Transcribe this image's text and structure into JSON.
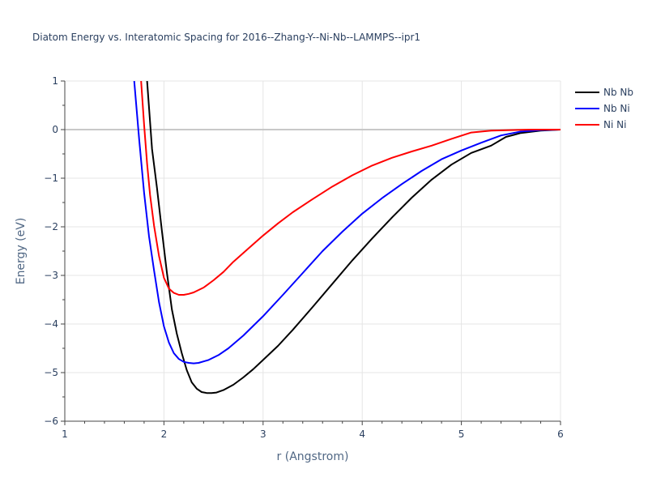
{
  "chart_data": {
    "type": "line",
    "title": "Diatom Energy vs. Interatomic Spacing for 2016--Zhang-Y--Ni-Nb--LAMMPS--ipr1",
    "xlabel": "r (Angstrom)",
    "ylabel": "Energy (eV)",
    "xlim": [
      1,
      6
    ],
    "ylim": [
      -6,
      1
    ],
    "xticks": [
      "1",
      "2",
      "3",
      "4",
      "5",
      "6"
    ],
    "yticks": [
      "1",
      "0",
      "−1",
      "−2",
      "−3",
      "−4",
      "−5",
      "−6"
    ],
    "grid": true,
    "legend_position": "top-right",
    "series": [
      {
        "name": "Nb Nb",
        "color": "#000000",
        "x": [
          1.83,
          1.88,
          1.93,
          1.98,
          2.03,
          2.08,
          2.13,
          2.18,
          2.23,
          2.28,
          2.33,
          2.38,
          2.43,
          2.48,
          2.53,
          2.6,
          2.7,
          2.8,
          2.9,
          3.0,
          3.15,
          3.3,
          3.5,
          3.7,
          3.9,
          4.1,
          4.3,
          4.5,
          4.7,
          4.9,
          5.1,
          5.3,
          5.45,
          5.6,
          5.8,
          6.0
        ],
        "y": [
          1.0,
          -0.4,
          -1.2,
          -2.1,
          -2.95,
          -3.7,
          -4.2,
          -4.6,
          -4.95,
          -5.2,
          -5.33,
          -5.4,
          -5.42,
          -5.42,
          -5.41,
          -5.36,
          -5.25,
          -5.1,
          -4.93,
          -4.74,
          -4.45,
          -4.12,
          -3.65,
          -3.17,
          -2.69,
          -2.24,
          -1.81,
          -1.4,
          -1.03,
          -0.72,
          -0.48,
          -0.33,
          -0.15,
          -0.07,
          -0.02,
          0.0
        ]
      },
      {
        "name": "Nb Ni",
        "color": "#0000ff",
        "x": [
          1.7,
          1.75,
          1.8,
          1.85,
          1.9,
          1.95,
          2.0,
          2.05,
          2.1,
          2.15,
          2.2,
          2.25,
          2.3,
          2.35,
          2.45,
          2.55,
          2.65,
          2.8,
          3.0,
          3.2,
          3.4,
          3.6,
          3.8,
          4.0,
          4.2,
          4.4,
          4.6,
          4.8,
          5.0,
          5.2,
          5.4,
          5.6,
          5.8,
          6.0
        ],
        "y": [
          1.0,
          -0.2,
          -1.3,
          -2.2,
          -2.9,
          -3.55,
          -4.05,
          -4.38,
          -4.6,
          -4.72,
          -4.78,
          -4.8,
          -4.81,
          -4.8,
          -4.74,
          -4.64,
          -4.5,
          -4.24,
          -3.84,
          -3.4,
          -2.95,
          -2.5,
          -2.1,
          -1.73,
          -1.41,
          -1.12,
          -0.85,
          -0.61,
          -0.43,
          -0.27,
          -0.12,
          -0.04,
          -0.01,
          0.0
        ]
      },
      {
        "name": "Ni Ni",
        "color": "#ff0000",
        "x": [
          1.77,
          1.8,
          1.83,
          1.86,
          1.9,
          1.95,
          2.0,
          2.05,
          2.1,
          2.15,
          2.2,
          2.25,
          2.3,
          2.4,
          2.5,
          2.6,
          2.7,
          2.85,
          3.0,
          3.15,
          3.3,
          3.5,
          3.7,
          3.9,
          4.1,
          4.3,
          4.5,
          4.7,
          4.9,
          5.1,
          5.3,
          5.5,
          5.7,
          5.9,
          6.0
        ],
        "y": [
          1.0,
          0.1,
          -0.7,
          -1.35,
          -1.98,
          -2.6,
          -3.05,
          -3.27,
          -3.36,
          -3.4,
          -3.4,
          -3.38,
          -3.35,
          -3.25,
          -3.1,
          -2.93,
          -2.72,
          -2.45,
          -2.18,
          -1.93,
          -1.7,
          -1.43,
          -1.17,
          -0.94,
          -0.74,
          -0.58,
          -0.45,
          -0.33,
          -0.19,
          -0.06,
          -0.02,
          -0.01,
          0.0,
          0.0,
          0.0
        ]
      }
    ]
  }
}
